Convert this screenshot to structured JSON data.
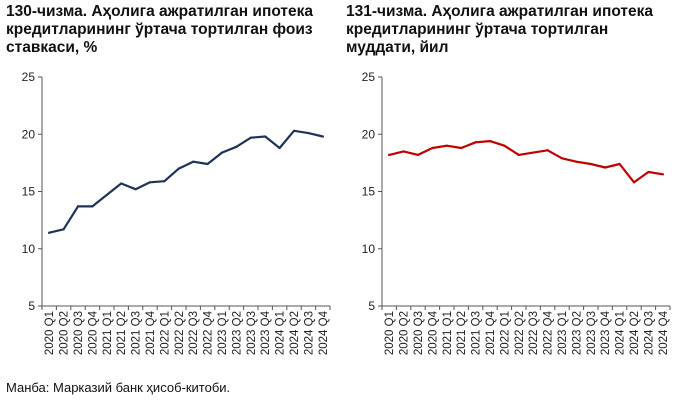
{
  "charts": [
    {
      "title": "130-чизма. Аҳолига ажратилган ипотека кредитларининг ўртача тортилган фоиз ставкаси, %"
    },
    {
      "title": "131-чизма. Аҳолига ажратилган ипотека кредитларининг ўртача тортилган муддати, йил"
    }
  ],
  "source": "Манба: Марказий банк ҳисоб-китоби.",
  "chart_data": [
    {
      "type": "line",
      "title": "130-чизма. Аҳолига ажратилган ипотека кредитларининг ўртача тортилган фоиз ставкаси, %",
      "xlabel": "",
      "ylabel": "",
      "ylim": [
        5,
        25
      ],
      "yticks": [
        5,
        10,
        15,
        20,
        25
      ],
      "grid": false,
      "legend": "none",
      "color": "#1f3258",
      "categories": [
        "2020 Q1",
        "2020 Q2",
        "2020 Q3",
        "2020 Q4",
        "2021 Q1",
        "2021 Q2",
        "2021 Q3",
        "2021 Q4",
        "2022 Q1",
        "2022 Q2",
        "2022 Q3",
        "2022 Q4",
        "2023 Q1",
        "2023 Q2",
        "2023 Q3",
        "2023 Q4",
        "2024 Q1",
        "2024 Q2",
        "2024 Q3",
        "2024 Q4"
      ],
      "values": [
        11.4,
        11.7,
        13.7,
        13.7,
        14.7,
        15.7,
        15.2,
        15.8,
        15.9,
        17.0,
        17.6,
        17.4,
        18.4,
        18.9,
        19.7,
        19.8,
        18.8,
        20.3,
        20.1,
        19.8
      ]
    },
    {
      "type": "line",
      "title": "131-чизма. Аҳолига ажратилган ипотека кредитларининг ўртача тортилган муддати, йил",
      "xlabel": "",
      "ylabel": "",
      "ylim": [
        5,
        25
      ],
      "yticks": [
        5,
        10,
        15,
        20,
        25
      ],
      "grid": false,
      "legend": "none",
      "color": "#c00000",
      "categories": [
        "2020 Q1",
        "2020 Q2",
        "2020 Q3",
        "2020 Q4",
        "2021 Q1",
        "2021 Q2",
        "2021 Q3",
        "2021 Q4",
        "2022 Q1",
        "2022 Q2",
        "2022 Q3",
        "2022 Q4",
        "2023 Q1",
        "2023 Q2",
        "2023 Q3",
        "2023 Q4",
        "2024 Q1",
        "2024 Q2",
        "2024 Q3",
        "2024 Q4"
      ],
      "values": [
        18.2,
        18.5,
        18.2,
        18.8,
        19.0,
        18.8,
        19.3,
        19.4,
        19.0,
        18.2,
        18.4,
        18.6,
        17.9,
        17.6,
        17.4,
        17.1,
        17.4,
        15.8,
        16.7,
        16.5
      ]
    }
  ]
}
